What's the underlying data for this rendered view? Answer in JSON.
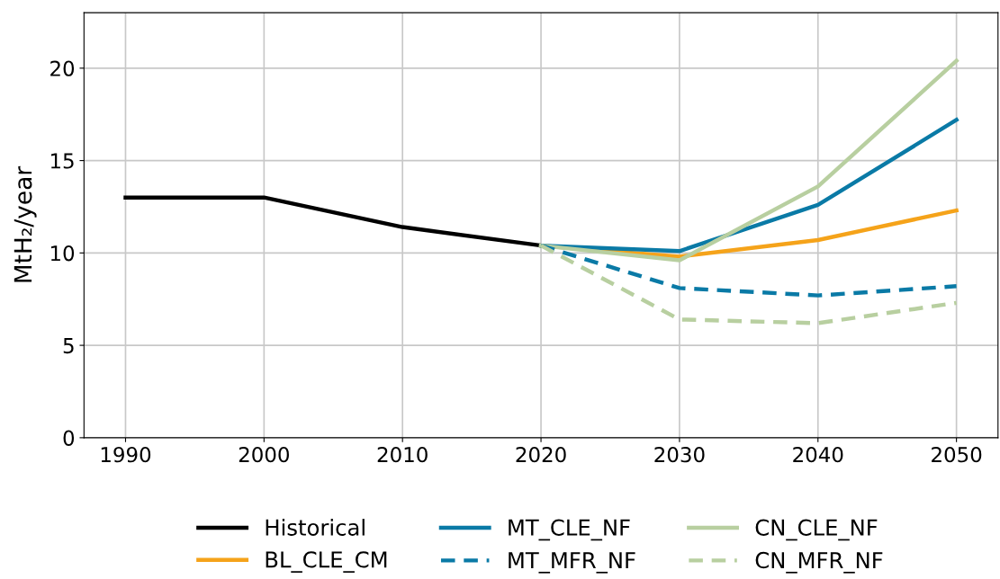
{
  "chart_data": {
    "type": "line",
    "ylabel": "MtH₂/year",
    "xlim": [
      1987,
      2053
    ],
    "xticks": [
      1990,
      2000,
      2010,
      2020,
      2030,
      2040,
      2050
    ],
    "ylim": [
      0,
      23
    ],
    "yticks": [
      0,
      5,
      10,
      15,
      20
    ],
    "grid": true,
    "legend": "bottom",
    "marker": "none",
    "series": [
      {
        "name": "Historical",
        "color": "#000000",
        "line_style": "solid",
        "x": [
          1990,
          2000,
          2010,
          2020
        ],
        "values": [
          13.0,
          13.0,
          11.4,
          10.4
        ]
      },
      {
        "name": "BL_CLE_CM",
        "color": "#f5a31a",
        "line_style": "solid",
        "x": [
          2020,
          2030,
          2040,
          2050
        ],
        "values": [
          10.4,
          9.8,
          10.7,
          12.3
        ]
      },
      {
        "name": "MT_CLE_NF",
        "color": "#0a7aa6",
        "line_style": "solid",
        "x": [
          2020,
          2030,
          2040,
          2050
        ],
        "values": [
          10.4,
          10.1,
          12.6,
          17.2
        ]
      },
      {
        "name": "MT_MFR_NF",
        "color": "#0a7aa6",
        "line_style": "dashed",
        "x": [
          2020,
          2030,
          2040,
          2050
        ],
        "values": [
          10.4,
          8.1,
          7.7,
          8.2
        ]
      },
      {
        "name": "CN_CLE_NF",
        "color": "#b8cfa0",
        "line_style": "solid",
        "x": [
          2020,
          2030,
          2040,
          2050
        ],
        "values": [
          10.4,
          9.6,
          13.6,
          20.4
        ]
      },
      {
        "name": "CN_MFR_NF",
        "color": "#b8cfa0",
        "line_style": "dashed",
        "x": [
          2020,
          2030,
          2040,
          2050
        ],
        "values": [
          10.4,
          6.4,
          6.2,
          7.3
        ]
      }
    ]
  }
}
